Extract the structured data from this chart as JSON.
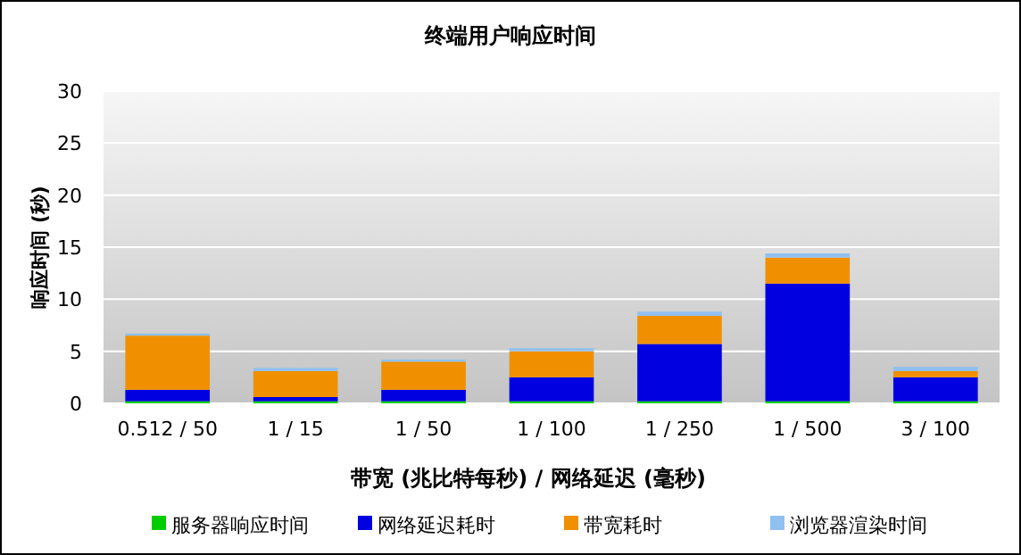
{
  "chart_data": {
    "type": "bar",
    "title": "终端用户响应时间",
    "xlabel": "带宽 (兆比特每秒) / 网络延迟 (毫秒)",
    "ylabel": "响应时间 (秒)",
    "categories": [
      "0.512 / 50",
      "1 / 15",
      "1 / 50",
      "1 / 100",
      "1 / 250",
      "1 / 500",
      "3 / 100"
    ],
    "stacked": true,
    "ylim": [
      0,
      30
    ],
    "yticks": [
      0,
      5,
      10,
      15,
      20,
      25,
      30
    ],
    "grid": "y",
    "legend": "bottom",
    "series": [
      {
        "name": "服务器响应时间",
        "color": "#00cc00",
        "values": [
          0.2,
          0.2,
          0.2,
          0.2,
          0.2,
          0.2,
          0.2
        ]
      },
      {
        "name": "网络延迟耗时",
        "color": "#0000e0",
        "values": [
          1.1,
          0.4,
          1.1,
          2.3,
          5.5,
          11.3,
          2.3
        ]
      },
      {
        "name": "带宽耗时",
        "color": "#f09000",
        "values": [
          5.2,
          2.5,
          2.7,
          2.5,
          2.7,
          2.5,
          0.6
        ]
      },
      {
        "name": "浏览器渲染时间",
        "color": "#8fc0f0",
        "values": [
          0.2,
          0.3,
          0.2,
          0.3,
          0.4,
          0.4,
          0.4
        ]
      }
    ]
  }
}
